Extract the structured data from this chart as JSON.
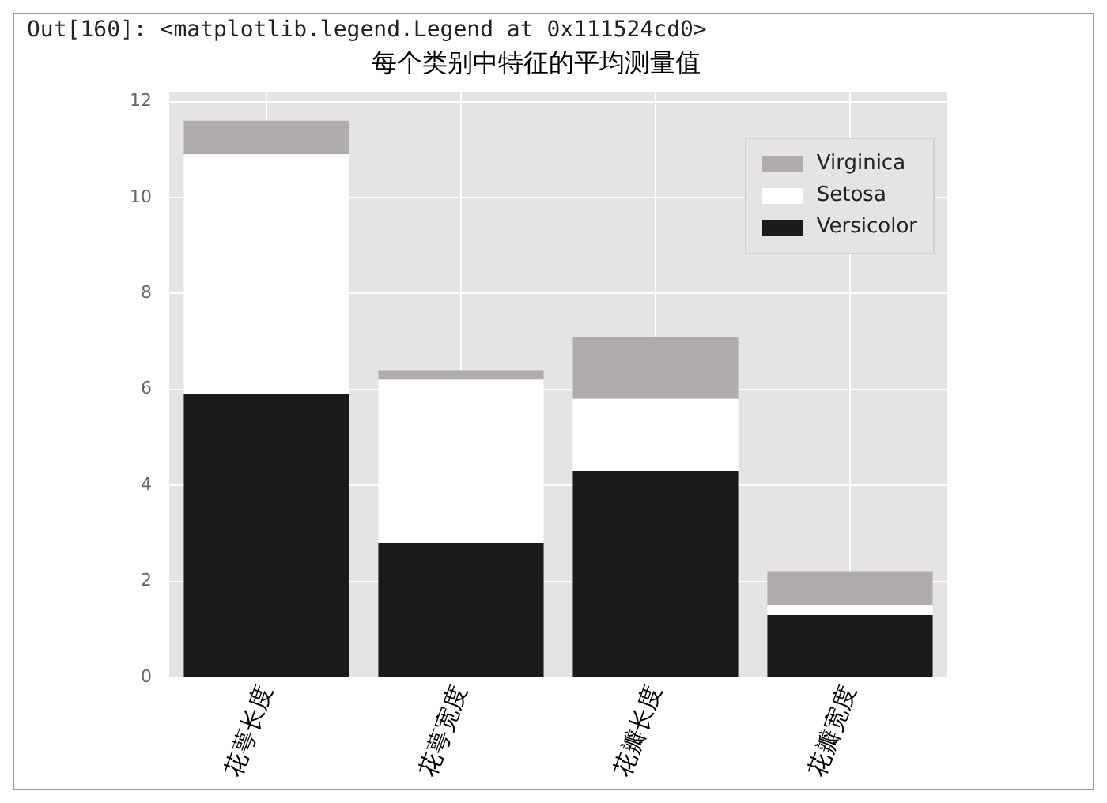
{
  "chart_data": {
    "type": "bar",
    "title": "每个类别中特征的平均测量值",
    "annotations": [
      "Out[160]: <matplotlib.legend.Legend at 0x111524cd0>"
    ],
    "categories": [
      "花萼长度",
      "花萼宽度",
      "花瓣长度",
      "花瓣宽度"
    ],
    "stacked": true,
    "series": [
      {
        "name": "Versicolor",
        "color": "#1a1a1a",
        "values": [
          5.9,
          2.8,
          4.3,
          1.3
        ]
      },
      {
        "name": "Setosa",
        "color": "#ffffff",
        "values": [
          5.0,
          3.4,
          1.5,
          0.2
        ]
      },
      {
        "name": "Virginica",
        "color": "#b0acac",
        "values": [
          0.7,
          0.2,
          1.3,
          0.7
        ]
      }
    ],
    "ylim": [
      0,
      12.2
    ],
    "yticks": [
      0,
      2,
      4,
      6,
      8,
      10,
      12
    ],
    "grid": true,
    "legend": "top right"
  }
}
